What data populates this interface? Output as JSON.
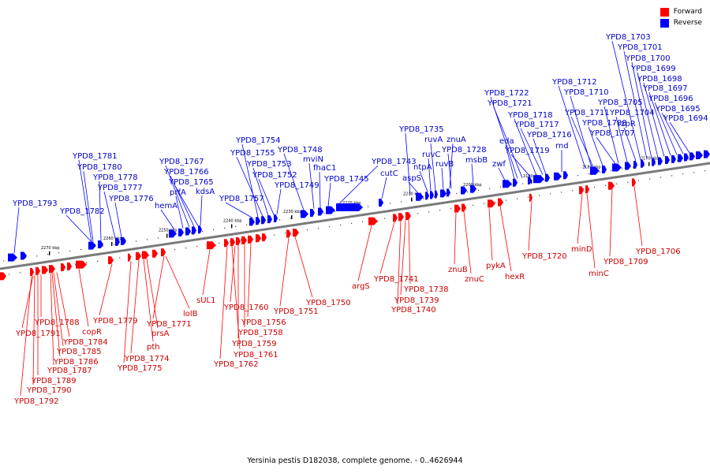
{
  "legend": {
    "forward_label": "Forward",
    "reverse_label": "Reverse",
    "forward_color": "#ff0000",
    "reverse_color": "#0000ff"
  },
  "caption": "Yersinia pestis D182038, complete genome. - 0..4626944",
  "scale": {
    "ticks": [
      "2270 kbp",
      "2260 kbp",
      "2250 kbp",
      "2240 kbp",
      "2230 kbp",
      "2220 kbp",
      "2210 kbp",
      "2200 kbp",
      "2190 kbp",
      "2180 kbp",
      "2170 kbp"
    ]
  },
  "reverse_genes": [
    "YPD8_1793",
    "YPD8_1782",
    "YPD8_1781",
    "YPD8_1780",
    "YPD8_1778",
    "YPD8_1777",
    "YPD8_1776",
    "hemA",
    "prfA",
    "YPD8_1767",
    "YPD8_1766",
    "YPD8_1765",
    "kdsA",
    "YPD8_1757",
    "YPD8_1754",
    "YPD8_1755",
    "YPD8_1753",
    "YPD8_1752",
    "YPD8_1749",
    "YPD8_1748",
    "mviN",
    "fhaC1",
    "YPD8_1745",
    "YPD8_1743",
    "cutC",
    "aspS",
    "ntpA",
    "ruvC",
    "ruvA",
    "ruvB",
    "YPD8_1735",
    "znuA",
    "YPD8_1728",
    "msbB",
    "zwf",
    "eda",
    "YPD8_1722",
    "YPD8_1721",
    "YPD8_1719",
    "YPD8_1718",
    "YPD8_1717",
    "YPD8_1716",
    "rnd",
    "YPD8_1712",
    "YPD8_1711",
    "YPD8_1710",
    "YPD8_1708",
    "YPD8_1707",
    "YPD8_1705",
    "YPD8_1704",
    "rzpR",
    "YPD8_1703",
    "YPD8_1701",
    "YPD8_1700",
    "YPD8_1699",
    "YPD8_1698",
    "YPD8_1697",
    "YPD8_1696",
    "YPD8_1695",
    "YPD8_1694"
  ],
  "forward_genes": [
    "YPD8_1792",
    "YPD8_1791",
    "YPD8_1790",
    "YPD8_1789",
    "YPD8_1788",
    "YPD8_1787",
    "YPD8_1786",
    "YPD8_1785",
    "YPD8_1784",
    "copR",
    "YPD8_1779",
    "YPD8_1775",
    "YPD8_1774",
    "pth",
    "prsA",
    "YPD8_1771",
    "lolB",
    "sUL1",
    "YPD8_1762",
    "YPD8_1761",
    "YPD8_1760",
    "YPD8_1759",
    "YPD8_1758",
    "YPD8_1756",
    "YPD8_1751",
    "YPD8_1750",
    "argS",
    "YPD8_1741",
    "YPD8_1740",
    "YPD8_1739",
    "YPD8_1738",
    "znuB",
    "znuC",
    "pykA",
    "hexR",
    "YPD8_1720",
    "minD",
    "minC",
    "YPD8_1709",
    "YPD8_1706"
  ]
}
